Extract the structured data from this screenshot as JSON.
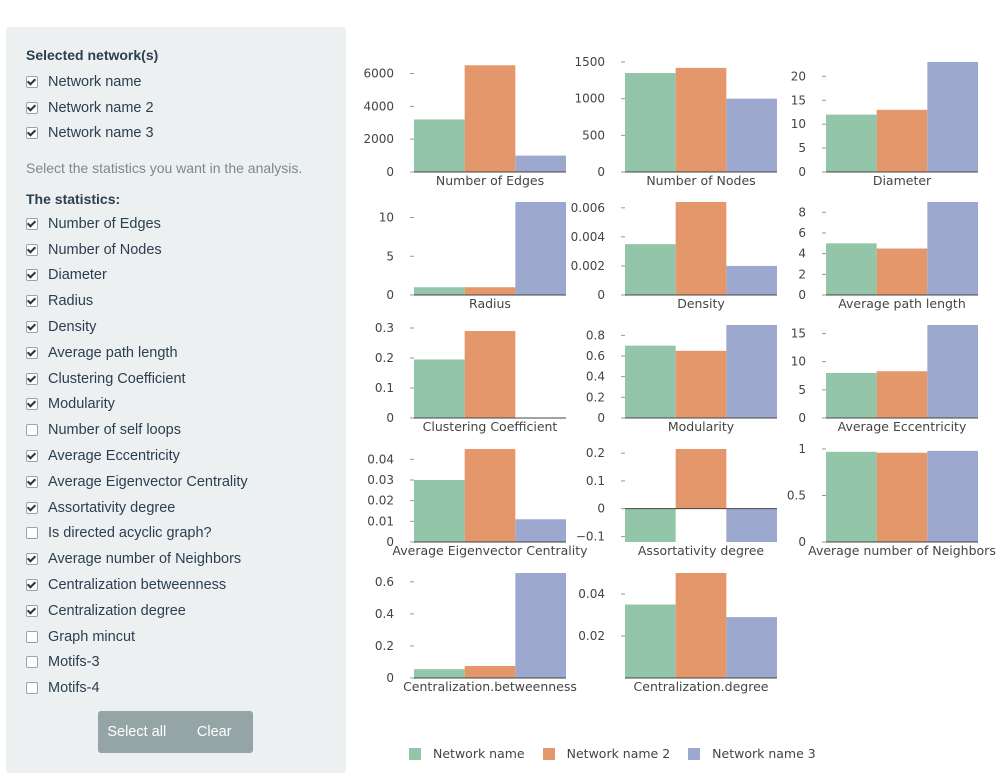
{
  "sidebar": {
    "networks_title": "Selected network(s)",
    "networks": [
      {
        "label": "Network name",
        "checked": true
      },
      {
        "label": "Network name 2",
        "checked": true
      },
      {
        "label": "Network name 3",
        "checked": true
      }
    ],
    "hint": "Select the statistics you want in the analysis.",
    "stats_title": "The statistics:",
    "stats": [
      {
        "label": "Number of Edges",
        "checked": true
      },
      {
        "label": "Number of Nodes",
        "checked": true
      },
      {
        "label": "Diameter",
        "checked": true
      },
      {
        "label": "Radius",
        "checked": true
      },
      {
        "label": "Density",
        "checked": true
      },
      {
        "label": "Average path length",
        "checked": true
      },
      {
        "label": "Clustering Coefficient",
        "checked": true
      },
      {
        "label": "Modularity",
        "checked": true
      },
      {
        "label": "Number of self loops",
        "checked": false
      },
      {
        "label": "Average Eccentricity",
        "checked": true
      },
      {
        "label": "Average Eigenvector Centrality",
        "checked": true
      },
      {
        "label": "Assortativity degree",
        "checked": true
      },
      {
        "label": "Is directed acyclic graph?",
        "checked": false
      },
      {
        "label": "Average number of Neighbors",
        "checked": true
      },
      {
        "label": "Centralization betweenness",
        "checked": true
      },
      {
        "label": "Centralization degree",
        "checked": true
      },
      {
        "label": "Graph mincut",
        "checked": false
      },
      {
        "label": "Motifs-3",
        "checked": false
      },
      {
        "label": "Motifs-4",
        "checked": false
      }
    ],
    "select_all_label": "Select all",
    "clear_label": "Clear"
  },
  "colors": {
    "series": [
      "#93c6a9",
      "#e4976a",
      "#9da8cf"
    ],
    "axis": "#444444",
    "tick_text": "#444444"
  },
  "chart_data": [
    {
      "type": "bar",
      "title": "Number of Edges",
      "series_names": [
        "Network name",
        "Network name 2",
        "Network name 3"
      ],
      "values": [
        3200,
        6500,
        1000
      ],
      "ylim": [
        0,
        6700
      ],
      "yticks": [
        0,
        2000,
        4000,
        6000
      ],
      "tick_labels": [
        "0",
        "2000",
        "4000",
        "6000"
      ]
    },
    {
      "type": "bar",
      "title": "Number of Nodes",
      "series_names": [
        "Network name",
        "Network name 2",
        "Network name 3"
      ],
      "values": [
        1350,
        1420,
        1000
      ],
      "ylim": [
        0,
        1500
      ],
      "yticks": [
        0,
        500,
        1000,
        1500
      ],
      "tick_labels": [
        "0",
        "500",
        "1000",
        "1500"
      ]
    },
    {
      "type": "bar",
      "title": "Diameter",
      "series_names": [
        "Network name",
        "Network name 2",
        "Network name 3"
      ],
      "values": [
        12,
        13,
        23
      ],
      "ylim": [
        0,
        23
      ],
      "yticks": [
        0,
        5,
        10,
        15,
        20
      ],
      "tick_labels": [
        "0",
        "5",
        "10",
        "15",
        "20"
      ]
    },
    {
      "type": "bar",
      "title": "Radius",
      "series_names": [
        "Network name",
        "Network name 2",
        "Network name 3"
      ],
      "values": [
        1,
        1,
        12
      ],
      "ylim": [
        0,
        12
      ],
      "yticks": [
        0,
        5,
        10
      ],
      "tick_labels": [
        "0",
        "5",
        "10"
      ]
    },
    {
      "type": "bar",
      "title": "Density",
      "series_names": [
        "Network name",
        "Network name 2",
        "Network name 3"
      ],
      "values": [
        0.0035,
        0.0064,
        0.002
      ],
      "ylim": [
        0,
        0.0064
      ],
      "yticks": [
        0,
        0.002,
        0.004,
        0.006
      ],
      "tick_labels": [
        "0",
        "0.002",
        "0.004",
        "0.006"
      ]
    },
    {
      "type": "bar",
      "title": "Average path length",
      "series_names": [
        "Network name",
        "Network name 2",
        "Network name 3"
      ],
      "values": [
        5,
        4.5,
        9
      ],
      "ylim": [
        0,
        9
      ],
      "yticks": [
        0,
        2,
        4,
        6,
        8
      ],
      "tick_labels": [
        "0",
        "2",
        "4",
        "6",
        "8"
      ]
    },
    {
      "type": "bar",
      "title": "Clustering Coefficient",
      "series_names": [
        "Network name",
        "Network name 2",
        "Network name 3"
      ],
      "values": [
        0.195,
        0.29,
        0
      ],
      "ylim": [
        0,
        0.31
      ],
      "yticks": [
        0,
        0.1,
        0.2,
        0.3
      ],
      "tick_labels": [
        "0",
        "0.1",
        "0.2",
        "0.3"
      ]
    },
    {
      "type": "bar",
      "title": "Modularity",
      "series_names": [
        "Network name",
        "Network name 2",
        "Network name 3"
      ],
      "values": [
        0.7,
        0.65,
        0.9
      ],
      "ylim": [
        0,
        0.9
      ],
      "yticks": [
        0,
        0.2,
        0.4,
        0.6,
        0.8
      ],
      "tick_labels": [
        "0",
        "0.2",
        "0.4",
        "0.6",
        "0.8"
      ]
    },
    {
      "type": "bar",
      "title": "Average Eccentricity",
      "series_names": [
        "Network name",
        "Network name 2",
        "Network name 3"
      ],
      "values": [
        8,
        8.3,
        16.5
      ],
      "ylim": [
        0,
        16.5
      ],
      "yticks": [
        0,
        5,
        10,
        15
      ],
      "tick_labels": [
        "0",
        "5",
        "10",
        "15"
      ]
    },
    {
      "type": "bar",
      "title": "Average Eigenvector Centrality",
      "series_names": [
        "Network name",
        "Network name 2",
        "Network name 3"
      ],
      "values": [
        0.03,
        0.045,
        0.011
      ],
      "ylim": [
        0,
        0.045
      ],
      "yticks": [
        0,
        0.01,
        0.02,
        0.03,
        0.04
      ],
      "tick_labels": [
        "0",
        "0.01",
        "0.02",
        "0.03",
        "0.04"
      ]
    },
    {
      "type": "bar",
      "title": "Assortativity degree",
      "series_names": [
        "Network name",
        "Network name 2",
        "Network name 3"
      ],
      "values": [
        -0.12,
        0.215,
        -0.12
      ],
      "ylim": [
        -0.12,
        0.215
      ],
      "yticks": [
        -0.1,
        0,
        0.1,
        0.2
      ],
      "tick_labels": [
        "−0.1",
        "0",
        "0.1",
        "0.2"
      ]
    },
    {
      "type": "bar",
      "title": "Average number of Neighbors",
      "series_names": [
        "Network name",
        "Network name 2",
        "Network name 3"
      ],
      "values": [
        0.97,
        0.96,
        0.98
      ],
      "ylim": [
        0,
        1
      ],
      "yticks": [
        0,
        0.5,
        1
      ],
      "tick_labels": [
        "0",
        "0.5",
        "1"
      ]
    },
    {
      "type": "bar",
      "title": "Centralization.betweenness",
      "series_names": [
        "Network name",
        "Network name 2",
        "Network name 3"
      ],
      "values": [
        0.055,
        0.075,
        0.655
      ],
      "ylim": [
        0,
        0.655
      ],
      "yticks": [
        0,
        0.2,
        0.4,
        0.6
      ],
      "tick_labels": [
        "0",
        "0.2",
        "0.4",
        "0.6"
      ]
    },
    {
      "type": "bar",
      "title": "Centralization.degree",
      "series_names": [
        "Network name",
        "Network name 2",
        "Network name 3"
      ],
      "values": [
        0.035,
        0.05,
        0.029
      ],
      "ylim": [
        0,
        0.05
      ],
      "yticks": [
        0.02,
        0.04
      ],
      "tick_labels": [
        "0.02",
        "0.04"
      ]
    }
  ],
  "legend": [
    {
      "label": "Network name"
    },
    {
      "label": "Network name 2"
    },
    {
      "label": "Network name 3"
    }
  ]
}
